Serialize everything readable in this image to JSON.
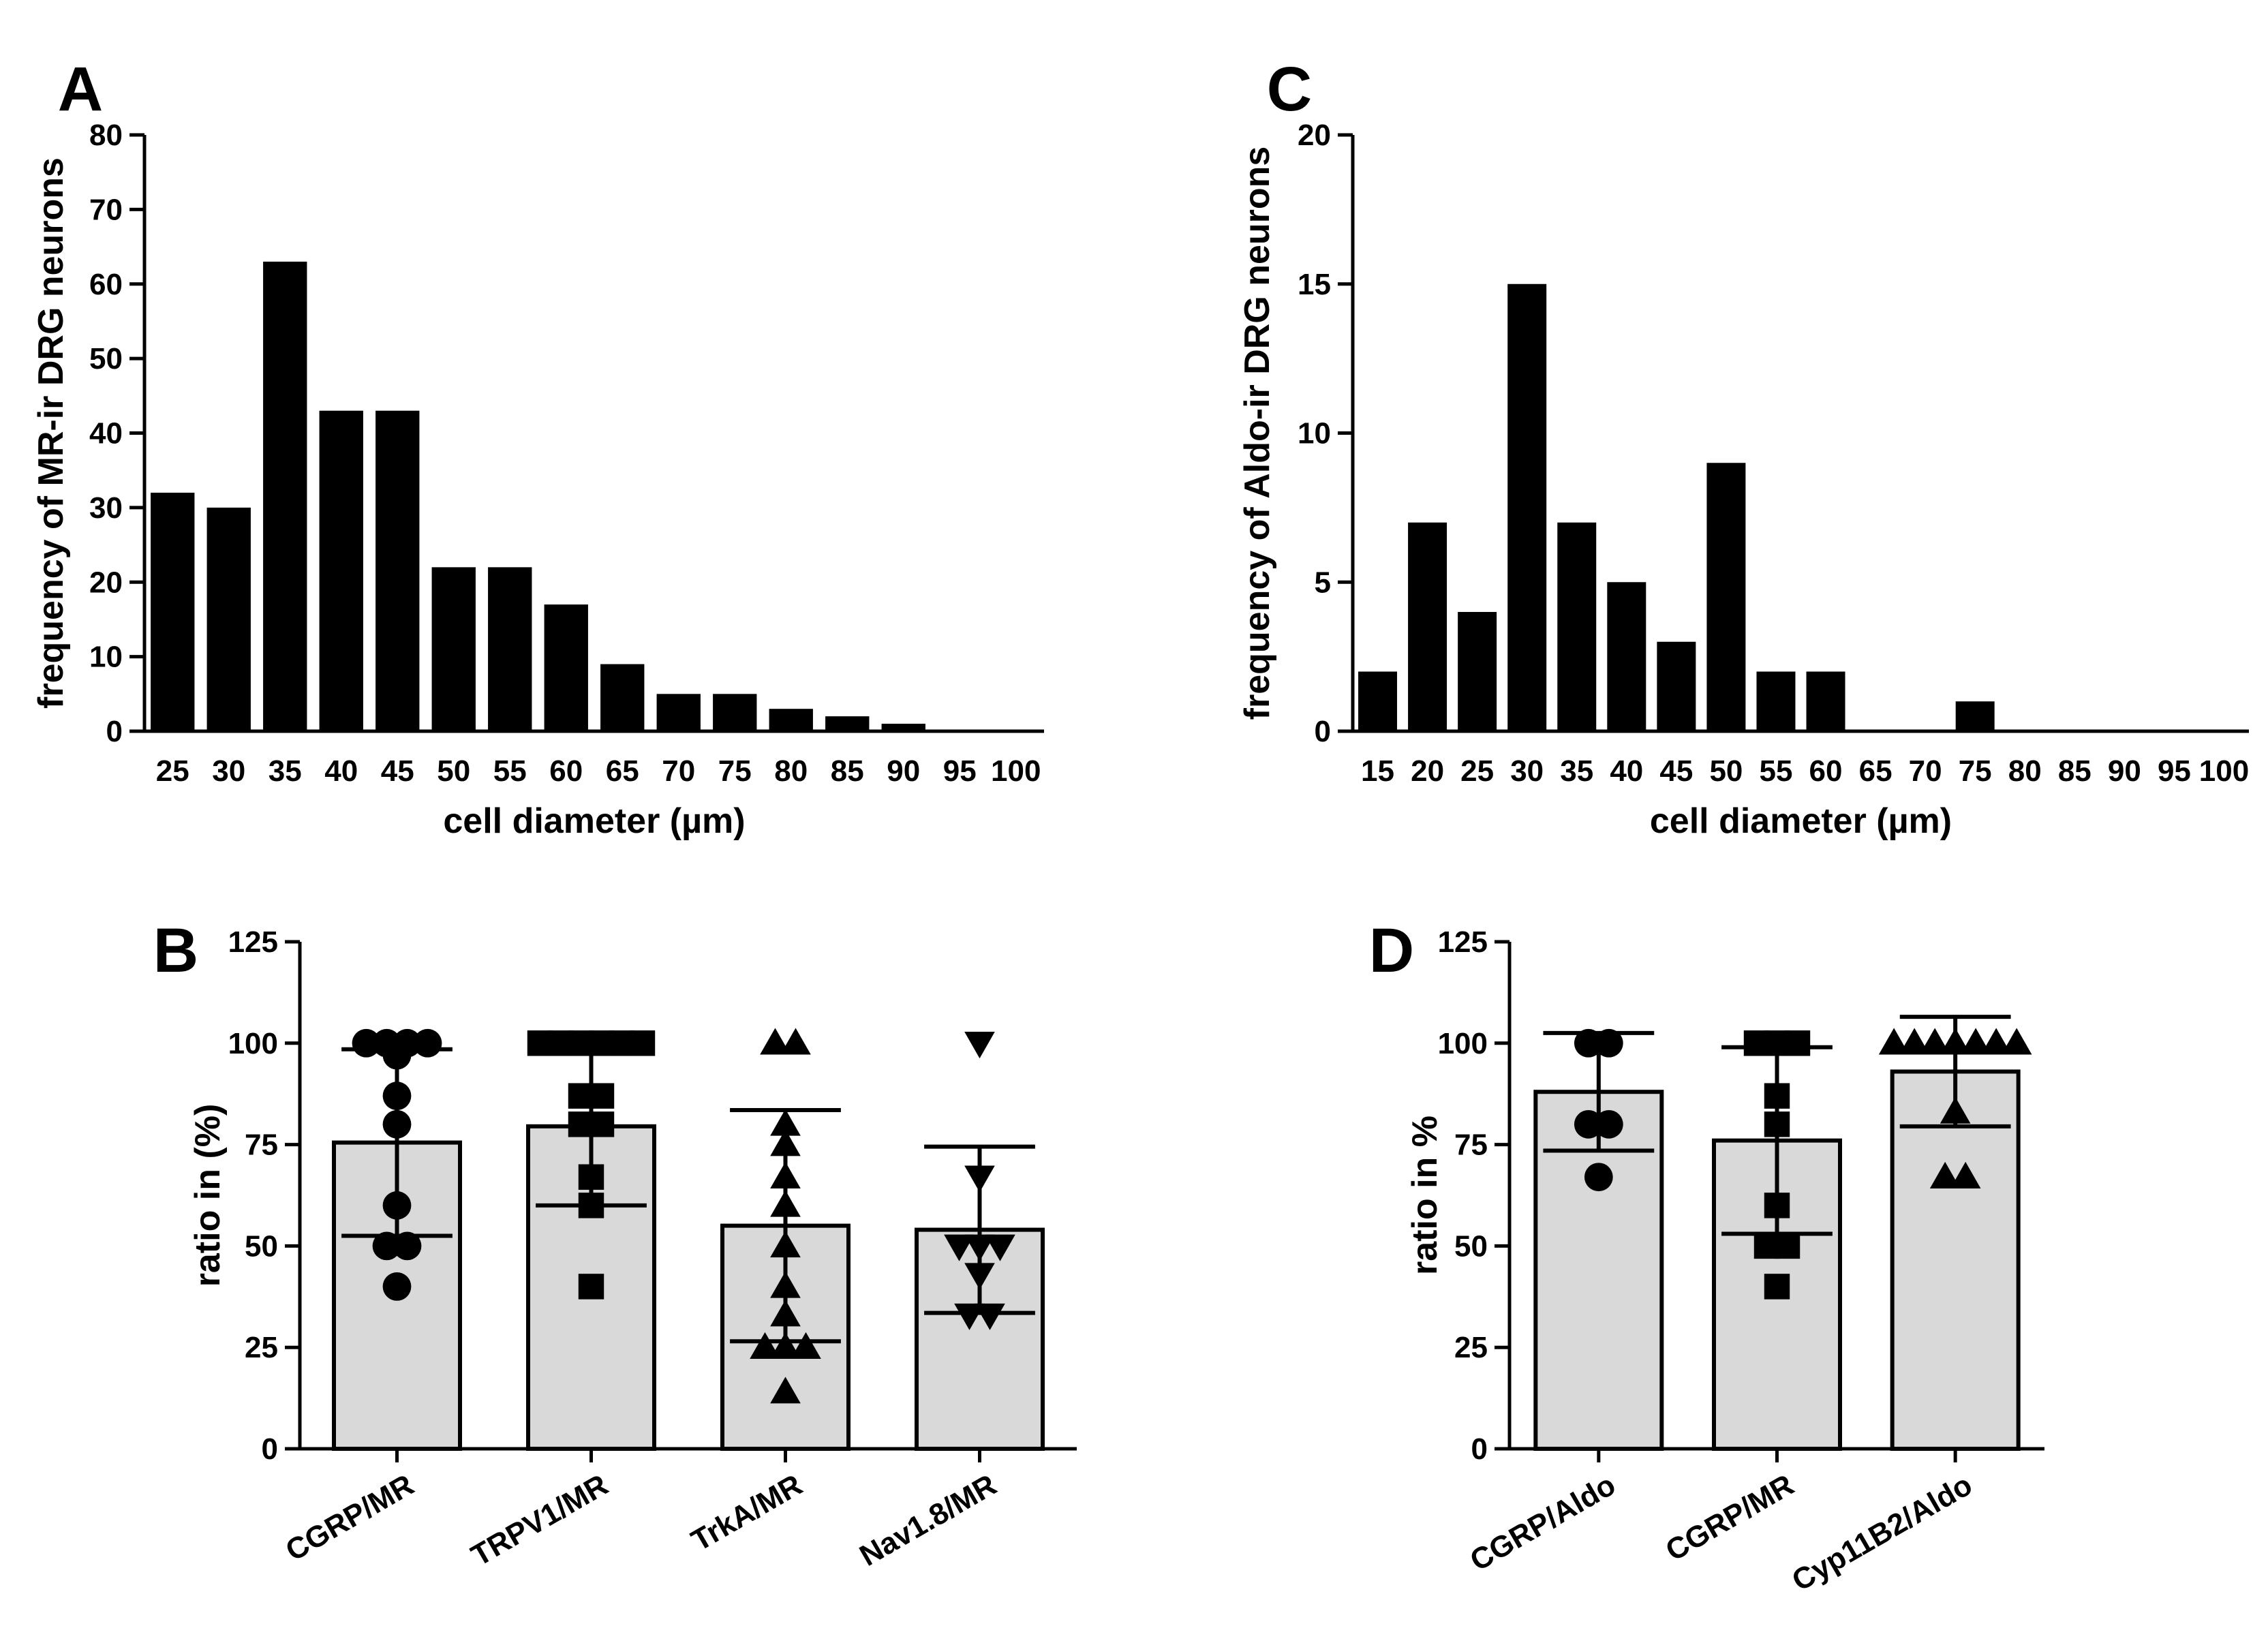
{
  "chart_data": [
    {
      "panel": "A",
      "type": "bar",
      "title": "",
      "xlabel": "cell diameter (µm)",
      "ylabel": "frequency of MR-ir DRG neurons",
      "ylim": [
        0,
        80
      ],
      "yticks": [
        0,
        10,
        20,
        30,
        40,
        50,
        60,
        70,
        80
      ],
      "categories": [
        "25",
        "30",
        "35",
        "40",
        "45",
        "50",
        "55",
        "60",
        "65",
        "70",
        "75",
        "80",
        "85",
        "90",
        "95",
        "100"
      ],
      "values": [
        32,
        30,
        63,
        43,
        43,
        22,
        22,
        17,
        9,
        5,
        5,
        3,
        2,
        1,
        0,
        0
      ],
      "bar_color": "#000000",
      "grid": false
    },
    {
      "panel": "B",
      "type": "bar",
      "title": "",
      "xlabel": "",
      "ylabel": "ratio in (%)",
      "ylim": [
        0,
        125
      ],
      "yticks": [
        0,
        25,
        50,
        75,
        100,
        125
      ],
      "categories": [
        "CGRP/MR",
        "TRPV1/MR",
        "TrkA/MR",
        "Nav1.8/MR"
      ],
      "values": [
        75.5,
        79.5,
        55,
        54
      ],
      "error": [
        23,
        19.5,
        28.5,
        20.5
      ],
      "markers": [
        "circle",
        "square",
        "triangle-up",
        "triangle-down"
      ],
      "points": [
        [
          100,
          100,
          100,
          100,
          97,
          87,
          80,
          60,
          50,
          50,
          40
        ],
        [
          100,
          100,
          100,
          100,
          100,
          100,
          87,
          87,
          80,
          80,
          67,
          60,
          40
        ],
        [
          100,
          100,
          80,
          75,
          67,
          60,
          50,
          40,
          33,
          25,
          25,
          25,
          14
        ],
        [
          100,
          67,
          50,
          50,
          50,
          43,
          33,
          33
        ]
      ],
      "bar_color": "#d9d9d9",
      "grid": false
    },
    {
      "panel": "C",
      "type": "bar",
      "title": "",
      "xlabel": "cell diameter (µm)",
      "ylabel": "frequency of Aldo-ir DRG neurons",
      "ylim": [
        0,
        20
      ],
      "yticks": [
        0,
        5,
        10,
        15,
        20
      ],
      "categories": [
        "15",
        "20",
        "25",
        "30",
        "35",
        "40",
        "45",
        "50",
        "55",
        "60",
        "65",
        "70",
        "75",
        "80",
        "85",
        "90",
        "95",
        "100"
      ],
      "values": [
        2,
        7,
        4,
        15,
        7,
        5,
        3,
        9,
        2,
        2,
        0,
        0,
        1,
        0,
        0,
        0,
        0,
        0
      ],
      "bar_color": "#000000",
      "grid": false
    },
    {
      "panel": "D",
      "type": "bar",
      "title": "",
      "xlabel": "",
      "ylabel": "ratio in %",
      "ylim": [
        0,
        125
      ],
      "yticks": [
        0,
        25,
        50,
        75,
        100,
        125
      ],
      "categories": [
        "CGRP/Aldo",
        "CGRP/MR",
        "Cyp11B2/Aldo"
      ],
      "values": [
        88,
        76,
        93
      ],
      "error": [
        14.5,
        23,
        13.5
      ],
      "markers": [
        "circle",
        "square",
        "triangle-up"
      ],
      "points": [
        [
          100,
          100,
          80,
          80,
          67
        ],
        [
          100,
          100,
          100,
          87,
          80,
          60,
          50,
          50,
          40
        ],
        [
          100,
          100,
          100,
          100,
          100,
          100,
          100,
          83,
          67,
          67
        ]
      ],
      "bar_color": "#d9d9d9",
      "grid": false
    }
  ]
}
